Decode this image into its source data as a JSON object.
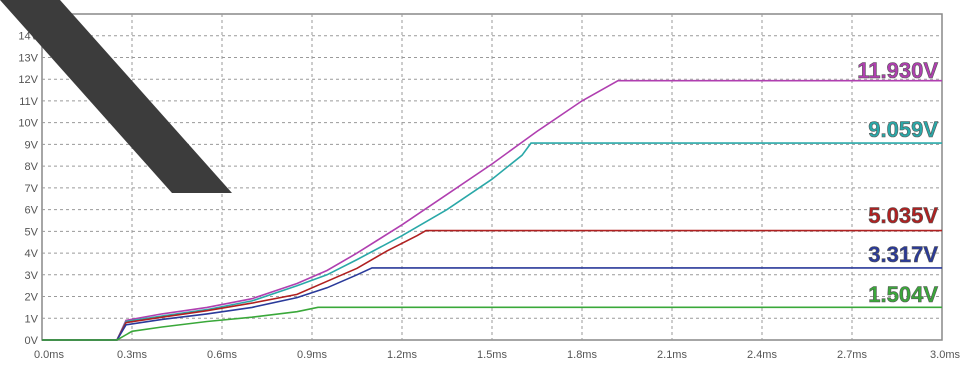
{
  "chart_data": {
    "type": "line",
    "xlim": [
      0,
      3.0
    ],
    "ylim": [
      0,
      15
    ],
    "grid": true,
    "x_tick_labels": [
      "0.0ms",
      "0.3ms",
      "0.6ms",
      "0.9ms",
      "1.2ms",
      "1.5ms",
      "1.8ms",
      "2.1ms",
      "2.4ms",
      "2.7ms",
      "3.0ms"
    ],
    "y_tick_labels": [
      "0V",
      "1V",
      "2V",
      "3V",
      "4V",
      "5V",
      "6V",
      "7V",
      "8V",
      "9V",
      "10V",
      "11V",
      "12V",
      "13V",
      "14V",
      "15V"
    ],
    "series": [
      {
        "label": "11.930V",
        "color": "#b03fb0",
        "points": [
          [
            0,
            0
          ],
          [
            0.25,
            0
          ],
          [
            0.28,
            0.9
          ],
          [
            0.4,
            1.2
          ],
          [
            0.55,
            1.5
          ],
          [
            0.7,
            1.9
          ],
          [
            0.85,
            2.6
          ],
          [
            0.95,
            3.2
          ],
          [
            1.05,
            4.0
          ],
          [
            1.2,
            5.3
          ],
          [
            1.35,
            6.7
          ],
          [
            1.5,
            8.1
          ],
          [
            1.65,
            9.6
          ],
          [
            1.8,
            11.0
          ],
          [
            1.92,
            11.93
          ],
          [
            3.0,
            11.93
          ]
        ]
      },
      {
        "label": "9.059V",
        "color": "#2aa8a8",
        "points": [
          [
            0,
            0
          ],
          [
            0.25,
            0
          ],
          [
            0.28,
            0.85
          ],
          [
            0.4,
            1.1
          ],
          [
            0.55,
            1.4
          ],
          [
            0.7,
            1.8
          ],
          [
            0.85,
            2.5
          ],
          [
            0.95,
            3.0
          ],
          [
            1.05,
            3.7
          ],
          [
            1.2,
            4.8
          ],
          [
            1.35,
            6.0
          ],
          [
            1.5,
            7.4
          ],
          [
            1.6,
            8.5
          ],
          [
            1.63,
            9.059
          ],
          [
            3.0,
            9.059
          ]
        ]
      },
      {
        "label": "5.035V",
        "color": "#b02020",
        "points": [
          [
            0,
            0
          ],
          [
            0.25,
            0
          ],
          [
            0.28,
            0.8
          ],
          [
            0.4,
            1.05
          ],
          [
            0.55,
            1.35
          ],
          [
            0.7,
            1.7
          ],
          [
            0.85,
            2.1
          ],
          [
            0.95,
            2.7
          ],
          [
            1.05,
            3.3
          ],
          [
            1.15,
            4.1
          ],
          [
            1.25,
            4.8
          ],
          [
            1.28,
            5.035
          ],
          [
            3.0,
            5.035
          ]
        ]
      },
      {
        "label": "3.317V",
        "color": "#2a3a9a",
        "points": [
          [
            0,
            0
          ],
          [
            0.25,
            0
          ],
          [
            0.28,
            0.7
          ],
          [
            0.4,
            0.95
          ],
          [
            0.55,
            1.2
          ],
          [
            0.7,
            1.5
          ],
          [
            0.85,
            1.95
          ],
          [
            0.95,
            2.4
          ],
          [
            1.05,
            3.0
          ],
          [
            1.1,
            3.317
          ],
          [
            3.0,
            3.317
          ]
        ]
      },
      {
        "label": "1.504V",
        "color": "#3aa83a",
        "points": [
          [
            0,
            0
          ],
          [
            0.25,
            0
          ],
          [
            0.3,
            0.4
          ],
          [
            0.4,
            0.6
          ],
          [
            0.55,
            0.85
          ],
          [
            0.7,
            1.05
          ],
          [
            0.85,
            1.3
          ],
          [
            0.92,
            1.504
          ],
          [
            3.0,
            1.504
          ]
        ]
      }
    ]
  }
}
